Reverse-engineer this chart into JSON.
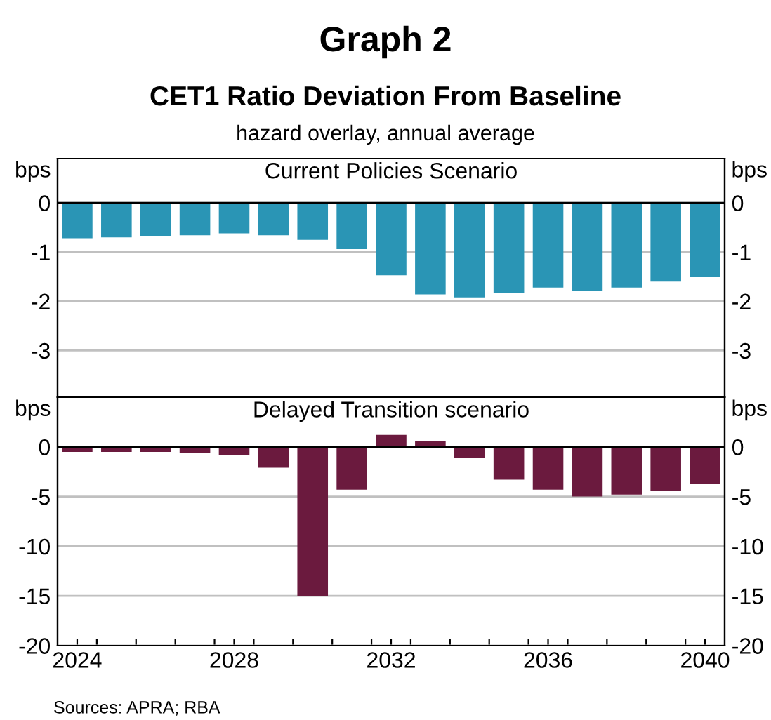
{
  "chart_data": [
    {
      "type": "bar",
      "title": "Graph 2",
      "subtitle": "CET1 Ratio Deviation From Baseline",
      "annotations": [
        "hazard overlay, annual average"
      ],
      "ylabel": "bps",
      "y2label": "bps",
      "x": [
        2024,
        2025,
        2026,
        2027,
        2028,
        2029,
        2030,
        2031,
        2032,
        2033,
        2034,
        2035,
        2036,
        2037,
        2038,
        2039,
        2040
      ],
      "series": [
        {
          "name": "Current Policies Scenario",
          "color": "#2a95b5",
          "values": [
            -0.72,
            -0.7,
            -0.68,
            -0.66,
            -0.62,
            -0.66,
            -0.75,
            -0.94,
            -1.47,
            -1.86,
            -1.92,
            -1.84,
            -1.72,
            -1.78,
            -1.72,
            -1.6,
            -1.51
          ]
        }
      ],
      "xlim": [
        2023.5,
        2040.5
      ],
      "ylim": [
        -3.95,
        0.9
      ],
      "yticks": [
        0,
        -1,
        -2,
        -3
      ],
      "y2lim": [
        -3.95,
        0.9
      ],
      "y2ticks": [
        0,
        -1,
        -2,
        -3
      ],
      "grid": "y",
      "tick_labels": "y"
    },
    {
      "type": "bar",
      "annotations": [
        "Sources: APRA; RBA"
      ],
      "ylabel": "bps",
      "y2label": "bps",
      "x": [
        2024,
        2025,
        2026,
        2027,
        2028,
        2029,
        2030,
        2031,
        2032,
        2033,
        2034,
        2035,
        2036,
        2037,
        2038,
        2039,
        2040
      ],
      "series": [
        {
          "name": "Delayed Transition scenario",
          "color": "#6b1a3e",
          "values": [
            -0.5,
            -0.5,
            -0.5,
            -0.6,
            -0.8,
            -2.1,
            -15.0,
            -4.3,
            1.2,
            0.6,
            -1.1,
            -3.3,
            -4.3,
            -5.0,
            -4.8,
            -4.4,
            -3.7
          ]
        }
      ],
      "xlim": [
        2023.5,
        2040.5
      ],
      "xticks": [
        2024,
        {
          "value": 2024.5,
          "label": null
        },
        {
          "value": 2025.5,
          "label": null
        },
        {
          "value": 2026.5,
          "label": null
        },
        {
          "value": 2027.5,
          "label": null
        },
        2028,
        {
          "value": 2028.5,
          "label": null
        },
        {
          "value": 2029.5,
          "label": null
        },
        {
          "value": 2030.5,
          "label": null
        },
        {
          "value": 2031.5,
          "label": null
        },
        2032,
        {
          "value": 2032.5,
          "label": null
        },
        {
          "value": 2033.5,
          "label": null
        },
        {
          "value": 2034.5,
          "label": null
        },
        {
          "value": 2035.5,
          "label": null
        },
        2036,
        {
          "value": 2036.5,
          "label": null
        },
        {
          "value": 2037.5,
          "label": null
        },
        {
          "value": 2038.5,
          "label": null
        },
        {
          "value": 2039.5,
          "label": null
        },
        2040
      ],
      "ylim": [
        -20,
        5
      ],
      "yticks": [
        0,
        -5,
        -10,
        -15,
        -20
      ],
      "y2lim": [
        -20,
        5
      ],
      "y2ticks": [
        0,
        -5,
        -10,
        -15,
        -20
      ],
      "grid": "y"
    }
  ]
}
